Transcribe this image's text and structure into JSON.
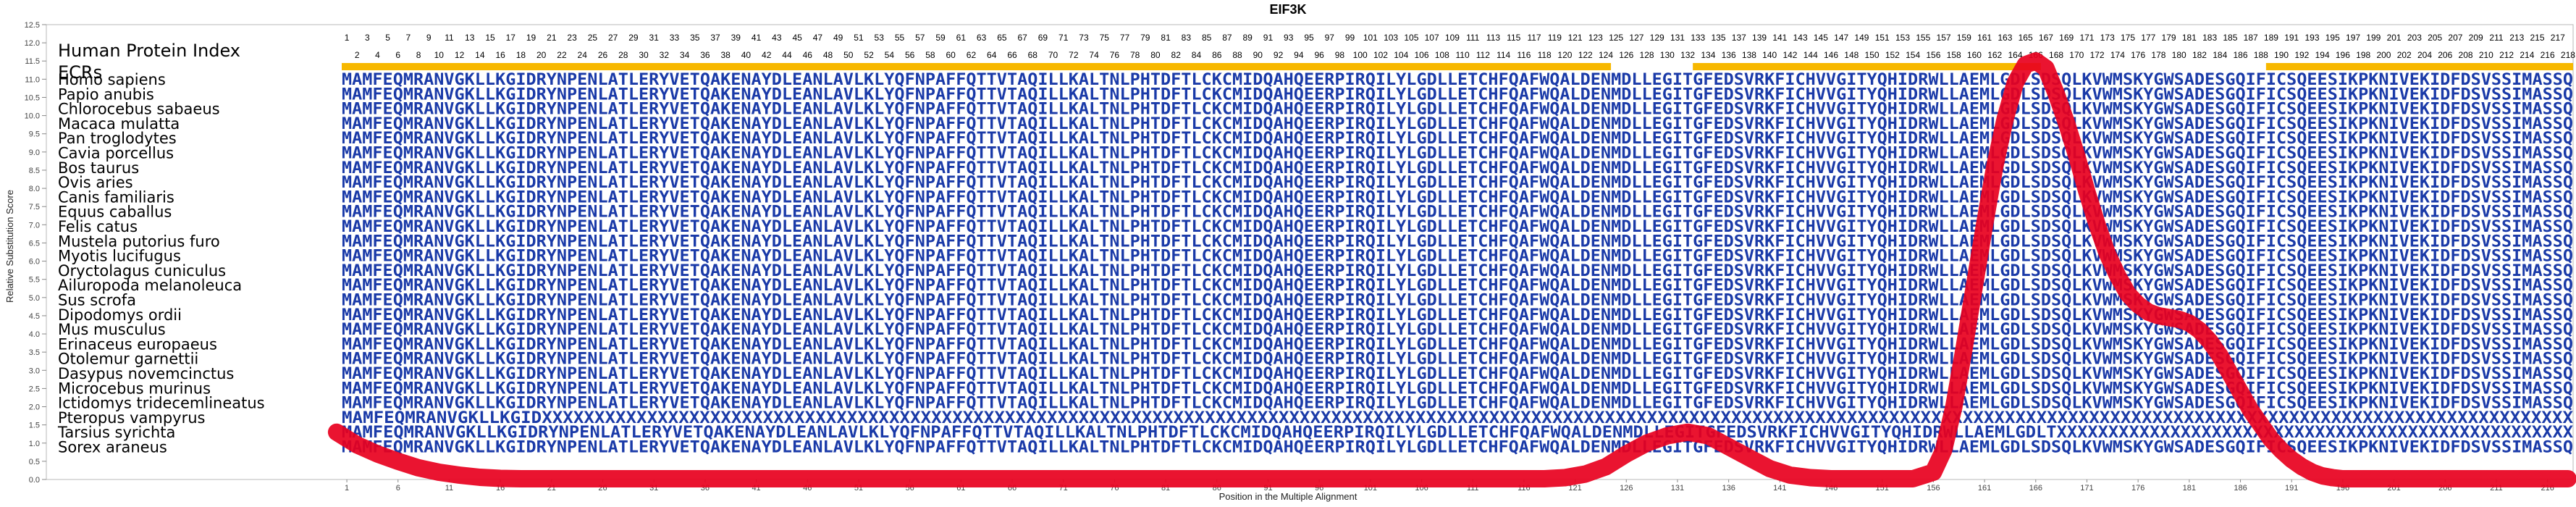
{
  "chart_data": {
    "type": "line",
    "title": "EIF3K",
    "xlabel": "Position in the Multiple Alignment",
    "ylabel": "Relative Substitution Score",
    "xlim": [
      1,
      218
    ],
    "ylim": [
      0,
      12.5
    ],
    "y_ticks": [
      "0.0",
      "0.5",
      "1.0",
      "1.5",
      "2.0",
      "2.5",
      "3.0",
      "3.5",
      "4.0",
      "4.5",
      "5.0",
      "5.5",
      "6.0",
      "6.5",
      "7.0",
      "7.5",
      "8.0",
      "8.5",
      "9.0",
      "9.5",
      "10.0",
      "10.5",
      "11.0",
      "11.5",
      "12.0",
      "12.5"
    ],
    "x_ticks": [
      1,
      6,
      11,
      16,
      21,
      26,
      31,
      36,
      41,
      46,
      51,
      56,
      61,
      66,
      71,
      76,
      81,
      86,
      91,
      96,
      101,
      106,
      111,
      116,
      121,
      126,
      131,
      136,
      141,
      146,
      151,
      156,
      161,
      166,
      171,
      176,
      181,
      186,
      191,
      196,
      201,
      206,
      211,
      216
    ],
    "top_labels": [
      "Human Protein Index",
      "ECRs"
    ],
    "ecr_regions": [
      [
        1,
        124
      ],
      [
        133,
        166
      ],
      [
        189,
        218
      ]
    ],
    "series": [
      {
        "color": "#e8001e",
        "x": [
          0,
          2,
          4,
          6,
          8,
          10,
          12,
          14,
          16,
          18,
          20,
          22,
          24,
          26,
          28,
          30,
          32,
          34,
          36,
          38,
          40,
          42,
          44,
          46,
          48,
          50,
          52,
          54,
          56,
          58,
          60,
          62,
          64,
          66,
          68,
          70,
          72,
          74,
          76,
          78,
          80,
          82,
          84,
          86,
          88,
          90,
          92,
          94,
          96,
          98,
          100,
          102,
          104,
          106,
          108,
          110,
          112,
          114,
          116,
          118,
          120,
          122,
          124,
          126,
          128,
          130,
          132,
          134,
          136,
          138,
          140,
          142,
          144,
          146,
          148,
          150,
          152,
          154,
          156,
          157,
          158,
          159,
          160,
          161,
          162,
          163,
          164,
          165,
          166,
          167,
          168,
          169,
          170,
          171,
          172,
          173,
          174,
          175,
          176,
          177,
          178,
          179,
          180,
          181,
          182,
          183,
          184,
          185,
          186,
          187,
          188,
          189,
          190,
          191,
          192,
          193,
          194,
          195,
          196,
          198,
          200,
          202,
          204,
          206,
          208,
          210,
          212,
          214,
          216,
          218
        ],
        "y": [
          1.3,
          0.95,
          0.7,
          0.5,
          0.32,
          0.2,
          0.12,
          0.06,
          0.03,
          0.02,
          0.02,
          0.02,
          0.02,
          0.02,
          0.02,
          0.02,
          0.02,
          0.02,
          0.02,
          0.02,
          0.02,
          0.02,
          0.02,
          0.02,
          0.02,
          0.02,
          0.02,
          0.02,
          0.02,
          0.02,
          0.02,
          0.02,
          0.02,
          0.02,
          0.02,
          0.02,
          0.02,
          0.02,
          0.02,
          0.02,
          0.02,
          0.02,
          0.02,
          0.02,
          0.02,
          0.02,
          0.02,
          0.02,
          0.02,
          0.02,
          0.02,
          0.02,
          0.02,
          0.02,
          0.02,
          0.02,
          0.02,
          0.02,
          0.02,
          0.02,
          0.05,
          0.15,
          0.35,
          0.7,
          1.0,
          1.2,
          1.3,
          1.2,
          0.9,
          0.6,
          0.3,
          0.12,
          0.05,
          0.02,
          0.02,
          0.02,
          0.02,
          0.02,
          0.2,
          0.8,
          2.0,
          3.6,
          5.3,
          7.0,
          8.6,
          9.9,
          10.9,
          11.4,
          11.5,
          11.3,
          10.6,
          9.8,
          8.9,
          7.9,
          7.0,
          6.2,
          5.6,
          5.1,
          4.8,
          4.6,
          4.5,
          4.45,
          4.4,
          4.3,
          4.1,
          3.8,
          3.4,
          2.9,
          2.4,
          1.9,
          1.5,
          1.1,
          0.8,
          0.55,
          0.35,
          0.2,
          0.1,
          0.05,
          0.02,
          0.02,
          0.02,
          0.02,
          0.02,
          0.02,
          0.02,
          0.02,
          0.02,
          0.02,
          0.02,
          0.02
        ]
      }
    ],
    "species": [
      "Homo sapiens",
      "Papio anubis",
      "Chlorocebus sabaeus",
      "Macaca mulatta",
      "Pan troglodytes",
      "Cavia porcellus",
      "Bos taurus",
      "Ovis aries",
      "Canis familiaris",
      "Equus caballus",
      "Felis catus",
      "Mustela putorius furo",
      "Myotis lucifugus",
      "Oryctolagus cuniculus",
      "Ailuropoda melanoleuca",
      "Sus scrofa",
      "Dipodomys ordii",
      "Mus musculus",
      "Erinaceus europaeus",
      "Otolemur garnettii",
      "Dasypus novemcinctus",
      "Microcebus murinus",
      "Ictidomys tridecemlineatus",
      "Pteropus vampyrus",
      "Tarsius syrichta",
      "Sorex araneus"
    ],
    "sequences": [
      "MAMFEQMRANVGKLLKGIDRYNPENLATLERYVETQAKENAYDLEANLAVLKLYQFNPAFFQTTVTAQILLKALTNLPHTDFTLCKCMIDQAHQEERPIRQILYLGDLLETCHFQAFWQALDENMDLLEGITGFEDSVRKFICHVVGITYQHIDRWLLAEMLGDLSDSQLKVWMSKYGWSADESGQIFICSQEESIKPKNIVEKIDFDSVSSIMASSQ",
      "MAMFEQMRANVGKLLKGIDRYNPENLATLERYVETQAKENAYDLEANLAVLKLYQFNPAFFQTTVTAQILLKALTNLPHTDFTLCKCMIDQAHQEERPIRQILYLGDLLETCHFQAFWQALDENMDLLEGITGFEDSVRKFICHVVGITYQHIDRWLLAEMLGDLSDSQLKVWMSKYGWSADESGQIFICSQEESIKPKNIVEKIDFDSVSSIMASSQ",
      "MAMFEQMRANVGKLLKGIDRYNPENLATLERYVETQAKENAYDLEANLAVLKLYQFNPAFFQTTVTAQILLKALTNLPHTDFTLCKCMIDQAHQEERPIRQILYLGDLLETCHFQAFWQALDENMDLLEGITGFEDSVRKFICHVVGITYQHIDRWLLAEMLGDLSDSQLKVWMSKYGWSADESGQIFICSQEESIKPKNIVEKIDFDSVSSIMASSQ",
      "MAMFEQMRANVGKLLKGIDRYNPENLATLERYVETQAKENAYDLEANLAVLKLYQFNPAFFQTTVTAQILLKALTNLPHTDFTLCKCMIDQAHQEERPIRQILYLGDLLETCHFQAFWQALDENMDLLEGITGFEDSVRKFICHVVGITYQHIDRWLLAEMLGDLSDSQLKVWMSKYGWSADESGQIFICSQEESIKPKNIVEKIDFDSVSSIMASSQ",
      "MAMFEQMRANVGKLLKGIDRYNPENLATLERYVETQAKENAYDLEANLAVLKLYQFNPAFFQTTVTAQILLKALTNLPHTDFTLCKCMIDQAHQEERPIRQILYLGDLLETCHFQAFWQALDENMDLLEGITGFEDSVRKFICHVVGITYQHIDRWLLAEMLGDLSDSQLKVWMSKYGWSADESGQIFICSQEESIKPKNIVEKIDFDSVSSIMASSQ",
      "MAMFEQMRANVGKLLKGIDRYNPENLATLERYVETQAKENAYDLEANLAVLKLYQFNPAFFQTTVTAQILLKALTNLPHTDFTLCKCMIDQAHQEERPIRQILYLGDLLETCHFQAFWQALDENMDLLEGITGFEDSVRKFICHVVGITYQHIDRWLLAEMLGDLSDSQLKVWMSKYGWSADESGQIFICSQEESIKPKNIVEKIDFDSVSSIMASSQ",
      "MAMFEQMRANVGKLLKGIDRYNPENLATLERYVETQAKENAYDLEANLAVLKLYQFNPAFFQTTVTAQILLKALTNLPHTDFTLCKCMIDQAHQEERPIRQILYLGDLLETCHFQAFWQALDENMDLLEGITGFEDSVRKFICHVVGITYQHIDRWLLAEMLGDLSDSQLKVWMSKYGWSADESGQIFICSQEESIKPKNIVEKIDFDSVSSIMASSQ",
      "MAMFEQMRANVGKLLKGIDRYNPENLATLERYVETQAKENAYDLEANLAVLKLYQFNPAFFQTTVTAQILLKALTNLPHTDFTLCKCMIDQAHQEERPIRQILYLGDLLETCHFQAFWQALDENMDLLEGITGFEDSVRKFICHVVGITYQHIDRWLLAEMLGDLSDSQLKVWMSKYGWSADESGQIFICSQEESIKPKNIVEKIDFDSVSSIMASSQ",
      "MAMFEQMRANVGKLLKGIDRYNPENLATLERYVETQAKENAYDLEANLAVLKLYQFNPAFFQTTVTAQILLKALTNLPHTDFTLCKCMIDQAHQEERPIRQILYLGDLLETCHFQAFWQALDENMDLLEGITGFEDSVRKFICHVVGITYQHIDRWLLAEMLGDLSDSQLKVWMSKYGWSADESGQIFICSQEESIKPKNIVEKIDFDSVSSIMASSQ",
      "MAMFEQMRANVGKLLKGIDRYNPENLATLERYVETQAKENAYDLEANLAVLKLYQFNPAFFQTTVTAQILLKALTNLPHTDFTLCKCMIDQAHQEERPIRQILYLGDLLETCHFQAFWQALDENMDLLEGITGFEDSVRKFICHVVGITYQHIDRWLLAEMLGDLSDSQLKVWMSKYGWSADESGQIFICSQEESIKPKNIVEKIDFDSVSSIMASSQ",
      "MAMFEQMRANVGKLLKGIDRYNPENLATLERYVETQAKENAYDLEANLAVLKLYQFNPAFFQTTVTAQILLKALTNLPHTDFTLCKCMIDQAHQEERPIRQILYLGDLLETCHFQAFWQALDENMDLLEGITGFEDSVRKFICHVVGITYQHIDRWLLAEMLGDLSDSQLKVWMSKYGWSADESGQIFICSQEESIKPKNIVEKIDFDSVSSIMASSQ",
      "MAMFEQMRANVGKLLKGIDRYNPENLATLERYVETQAKENAYDLEANLAVLKLYQFNPAFFQTTVTAQILLKALTNLPHTDFTLCKCMIDQAHQEERPIRQILYLGDLLETCHFQAFWQALDENMDLLEGITGFEDSVRKFICHVVGITYQHIDRWLLAEMLGDLSDSQLKVWMSKYGWSADESGQIFICSQEESIKPKNIVEKIDFDSVSSIMASSQ",
      "MAMFEQMRANVGKLLKGIDRYNPENLATLERYVETQAKENAYDLEANLAVLKLYQFNPAFFQTTVTAQILLKALTNLPHTDFTLCKCMIDQAHQEERPIRQILYLGDLLETCHFQAFWQALDENMDLLEGITGFEDSVRKFICHVVGITYQHIDRWLLAEMLGDLSDSQLKVWMSKYGWSADESGQIFICSQEESIKPKNIVEKIDFDSVSSIMASSQ",
      "MAMFEQMRANVGKLLKGIDRYNPENLATLERYVETQAKENAYDLEANLAVLKLYQFNPAFFQTTVTAQILLKALTNLPHTDFTLCKCMIDQAHQEERPIRQILYLGDLLETCHFQAFWQALDENMDLLEGITGFEDSVRKFICHVVGITYQHIDRWLLAEMLGDLSDSQLKVWMSKYGWSADESGQIFICSQEESIKPKNIVEKIDFDSVSSIMASSQ",
      "MAMFEQMRANVGKLLKGIDRYNPENLATLERYVETQAKENAYDLEANLAVLKLYQFNPAFFQTTVTAQILLKALTNLPHTDFTLCKCMIDQAHQEERPIRQILYLGDLLETCHFQAFWQALDENMDLLEGITGFEDSVRKFICHVVGITYQHIDRWLLAEMLGDLSDSQLKVWMSKYGWSADESGQIFICSQEESIKPKNIVEKIDFDSVSSIMASSQ",
      "MAMFEQMRANVGKLLKGIDRYNPENLATLERYVETQAKENAYDLEANLAVLKLYQFNPAFFQTTVTAQILLKALTNLPHTDFTLCKCMIDQAHQEERPIRQILYLGDLLETCHFQAFWQALDENMDLLEGITGFEDSVRKFICHVVGITYQHIDRWLLAEMLGDLSDSQLKVWMSKYGWSADESGQIFICSQEESIKPKNIVEKIDFDSVSSIMASSQ",
      "MAMFEQMRANVGKLLKGIDRYNPENLATLERYVETQAKENAYDLEANLAVLKLYQFNPAFFQTTVTAQILLKALTNLPHTDFTLCKCMIDQAHQEERPIRQILYLGDLLETCHFQAFWQALDENMDLLEGITGFEDSVRKFICHVVGITYQHIDRWLLAEMLGDLSDSQLKVWMSKYGWSADESGQIFICSQEESIKPKNIVEKIDFDSVSSIMASSQ",
      "MAMFEQMRANVGKLLKGIDRYNPENLATLERYVETQAKENAYDLEANLAVLKLYQFNPAFFQTTVTAQILLKALTNLPHTDFTLCKCMIDQAHQEERPIRQILYLGDLLETCHFQAFWQALDENMDLLEGITGFEDSVRKFICHVVGITYQHIDRWLLAEMLGDLSDSQLKVWMSKYGWSADESGQIFICSQEESIKPKNIVEKIDFDSVSSIMASSQ",
      "MAMFEQMRANVGKLLKGIDRYNPENLATLERYVETQAKENAYDLEANLAVLKLYQFNPAFFQTTVTAQILLKALTNLPHTDFTLCKCMIDQAHQEERPIRQILYLGDLLETCHFQAFWQALDENMDLLEGITGFEDSVRKFICHVVGITYQHIDRWLLAEMLGDLSDSQLKVWMSKYGWSADESGQIFICSQEESIKPKNIVEKIDFDSVSSIMASSQ",
      "MAMFEQMRANVGKLLKGIDRYNPENLATLERYVETQAKENAYDLEANLAVLKLYQFNPAFFQTTVTAQILLKALTNLPHTDFTLCKCMIDQAHQEERPIRQILYLGDLLETCHFQAFWQALDENMDLLEGITGFEDSVRKFICHVVGITYQHIDRWLLAEMLGDLSDSQLKVWMSKYGWSADESGQIFICSQEESIKPKNIVEKIDFDSVSSIMASSQ",
      "MAMFEQMRANVGKLLKGIDRYNPENLATLERYVETQAKENAYDLEANLAVLKLYQFNPAFFQTTVTAQILLKALTNLPHTDFTLCKCMIDQAHQEERPIRQILYLGDLLETCHFQAFWQALDENMDLLEGITGFEDSVRKFICHVVGITYQHIDRWLLAEMLGDLSDSQLKVWMSKYGWSADESGQIFICSQEESIKPKNIVEKIDFDSVSSIMASSQ",
      "MAMFEQMRANVGKLLKGIDRYNPENLATLERYVETQAKENAYDLEANLAVLKLYQFNPAFFQTTVTAQILLKALTNLPHTDFTLCKCMIDQAHQEERPIRQILYLGDLLETCHFQAFWQALDENMDLLEGITGFEDSVRKFICHVVGITYQHIDRWLLAEMLGDLSDSQLKVWMSKYGWSADESGQIFICSQEESIKPKNIVEKIDFDSVSSIMASSQ",
      "MAMFEQMRANVGKLLKGIDRYNPENLATLERYVETQAKENAYDLEANLAVLKLYQFNPAFFQTTVTAQILLKALTNLPHTDFTLCKCMIDQAHQEERPIRQILYLGDLLETCHFQAFWQALDENMDLLEGITGFEDSVRKFICHVVGITYQHIDRWLLAEMLGDLSDSQLKVWMSKYGWSADESGQIFICSQEESIKPKNIVEKIDFDSVSSIMASSQ",
      "MAMFEQMRANVGKLLKGIDXXXXXXXXXXXXXXXXXXXXXXXXXXXXXXXXXXXXXXXXXXXXXXXXXXXXXXXXXXXXXXXXXXXXXXXXXXXXXXXXXXXXXXXXXXXXXXXXXXXXXXXXXXXXXXXXXXXXXXXXXXXXXXXXXXXXXXXXXXXXXXXXXXXXXXXXXXXXXXXXXXXXXXXXXXXXXXXXXXXXXXXXXXXXXXXXX",
      "MAMFEQMRANVGKLLKGIDRYNPENLATLERYVETQAKENAYDLEANLAVLKLYQFNPAFFQTTVTAQILLKALTNLPHTDFTLCKCMIDQAHQEERPIRQILYLGDLLETCHFQAFWQALDENMDLLEGITGFEDSVRKFICHVVGITYQHIDRWLLAEMLGDLTXXXXXXXXXXXXXXXXXXXXXXXXXXXXXXXXXXXXXXXXXXXXXXXXXX",
      "MAMFEQMRANVGKLLKGIDRYNPENLATLERYVETQAKENAYDLEANLAVLKLYQFNPAFFQTTVTAQILLKALTNLPHTDFTLCKCMIDQAHQEERPIRQILYLGDLLETCHFQAFWQALDENMDLLEGITGFEDSVRKFICHVVGITYQHIDRWLLAEMLGDLSDSQLKVWMSKYGWSADESGQIFICSQEESIKPKNIVEKIDFDSVSSIMASSQ"
    ]
  }
}
